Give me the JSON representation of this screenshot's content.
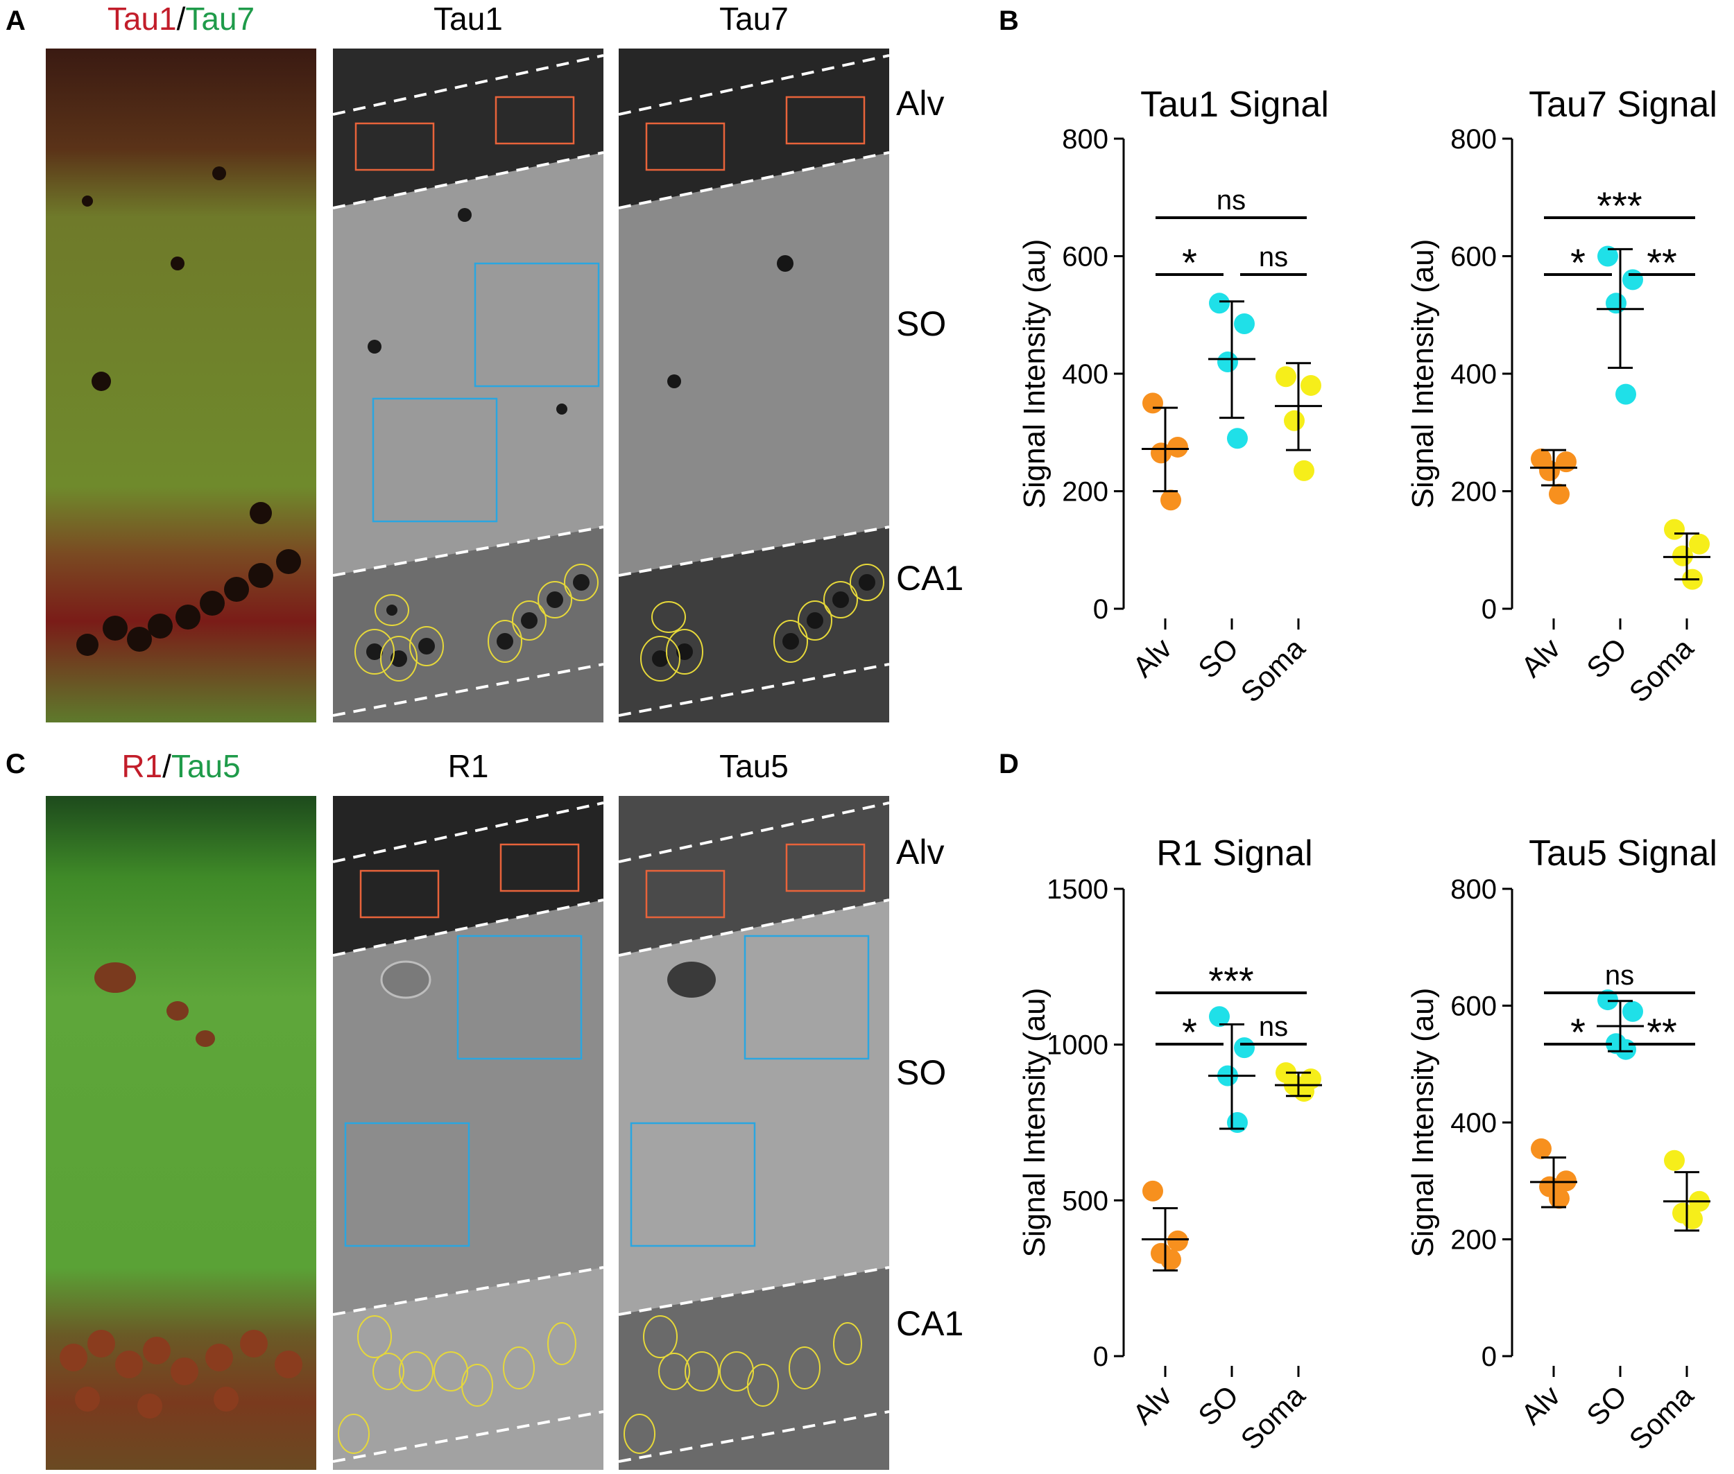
{
  "panels": {
    "A": {
      "letter": "A",
      "merge_title": {
        "red": "Tau1",
        "sep": "/",
        "green": "Tau7"
      },
      "gray_titles": [
        "Tau1",
        "Tau7"
      ],
      "regions": [
        "Alv",
        "SO",
        "CA1"
      ]
    },
    "B": {
      "letter": "B"
    },
    "C": {
      "letter": "C",
      "merge_title": {
        "red": "R1",
        "sep": "/",
        "green": "Tau5"
      },
      "gray_titles": [
        "R1",
        "Tau5"
      ],
      "regions": [
        "Alv",
        "SO",
        "CA1"
      ]
    },
    "D": {
      "letter": "D"
    }
  },
  "colors": {
    "alv": "#f7901e",
    "so": "#1fe0e8",
    "soma": "#f6ee1a",
    "alv_box": "#e8633a",
    "so_box": "#2aa6e0",
    "soma_outline": "#e6d83a",
    "merge_red": "#c21d2a",
    "merge_green": "#1f9b4a"
  },
  "chart_data": [
    {
      "type": "scatter",
      "title": "Tau1 Signal",
      "ylabel": "Signal Intensity (au)",
      "categories": [
        "Alv",
        "SO",
        "Soma"
      ],
      "ylim": [
        0,
        800
      ],
      "yticks": [
        0,
        200,
        400,
        600,
        800
      ],
      "points": [
        [
          350,
          275,
          265,
          185
        ],
        [
          520,
          485,
          420,
          290
        ],
        [
          395,
          380,
          320,
          235
        ]
      ],
      "means": [
        272,
        425,
        345
      ],
      "sd": [
        [
          200,
          342
        ],
        [
          325,
          523
        ],
        [
          270,
          418
        ]
      ],
      "significance": [
        {
          "from": 0,
          "to": 2,
          "level": 1,
          "label": "ns"
        },
        {
          "from": 0,
          "to": 1,
          "level": 0,
          "label": "*"
        },
        {
          "from": 1,
          "to": 2,
          "level": 0,
          "label": "ns"
        }
      ]
    },
    {
      "type": "scatter",
      "title": "Tau7 Signal",
      "ylabel": "Signal Intensity (au)",
      "categories": [
        "Alv",
        "SO",
        "Soma"
      ],
      "ylim": [
        0,
        800
      ],
      "yticks": [
        0,
        200,
        400,
        600,
        800
      ],
      "points": [
        [
          255,
          250,
          235,
          195
        ],
        [
          600,
          560,
          520,
          365
        ],
        [
          135,
          110,
          90,
          50
        ]
      ],
      "means": [
        240,
        510,
        88
      ],
      "sd": [
        [
          210,
          270
        ],
        [
          410,
          612
        ],
        [
          50,
          128
        ]
      ],
      "significance": [
        {
          "from": 0,
          "to": 2,
          "level": 1,
          "label": "***"
        },
        {
          "from": 0,
          "to": 1,
          "level": 0,
          "label": "*"
        },
        {
          "from": 1,
          "to": 2,
          "level": 0,
          "label": "**"
        }
      ]
    },
    {
      "type": "scatter",
      "title": "R1 Signal",
      "ylabel": "Signal Intensity (au)",
      "categories": [
        "Alv",
        "SO",
        "Soma"
      ],
      "ylim": [
        0,
        1500
      ],
      "yticks": [
        0,
        500,
        1000,
        1500
      ],
      "points": [
        [
          530,
          370,
          330,
          310
        ],
        [
          1090,
          990,
          900,
          750
        ],
        [
          910,
          890,
          870,
          850
        ]
      ],
      "means": [
        375,
        900,
        870
      ],
      "sd": [
        [
          275,
          475
        ],
        [
          730,
          1065
        ],
        [
          835,
          910
        ]
      ],
      "significance": [
        {
          "from": 0,
          "to": 2,
          "level": 1,
          "label": "***"
        },
        {
          "from": 0,
          "to": 1,
          "level": 0,
          "label": "*"
        },
        {
          "from": 1,
          "to": 2,
          "level": 0,
          "label": "ns"
        }
      ]
    },
    {
      "type": "scatter",
      "title": "Tau5 Signal",
      "ylabel": "Signal Intensity (au)",
      "categories": [
        "Alv",
        "SO",
        "Soma"
      ],
      "ylim": [
        0,
        800
      ],
      "yticks": [
        0,
        200,
        400,
        600,
        800
      ],
      "points": [
        [
          355,
          300,
          290,
          270
        ],
        [
          610,
          590,
          535,
          525
        ],
        [
          335,
          265,
          245,
          235
        ]
      ],
      "means": [
        298,
        565,
        265
      ],
      "sd": [
        [
          255,
          340
        ],
        [
          522,
          608
        ],
        [
          215,
          315
        ]
      ],
      "significance": [
        {
          "from": 0,
          "to": 2,
          "level": 1,
          "label": "ns"
        },
        {
          "from": 0,
          "to": 1,
          "level": 0,
          "label": "*"
        },
        {
          "from": 1,
          "to": 2,
          "level": 0,
          "label": "**"
        }
      ]
    }
  ]
}
